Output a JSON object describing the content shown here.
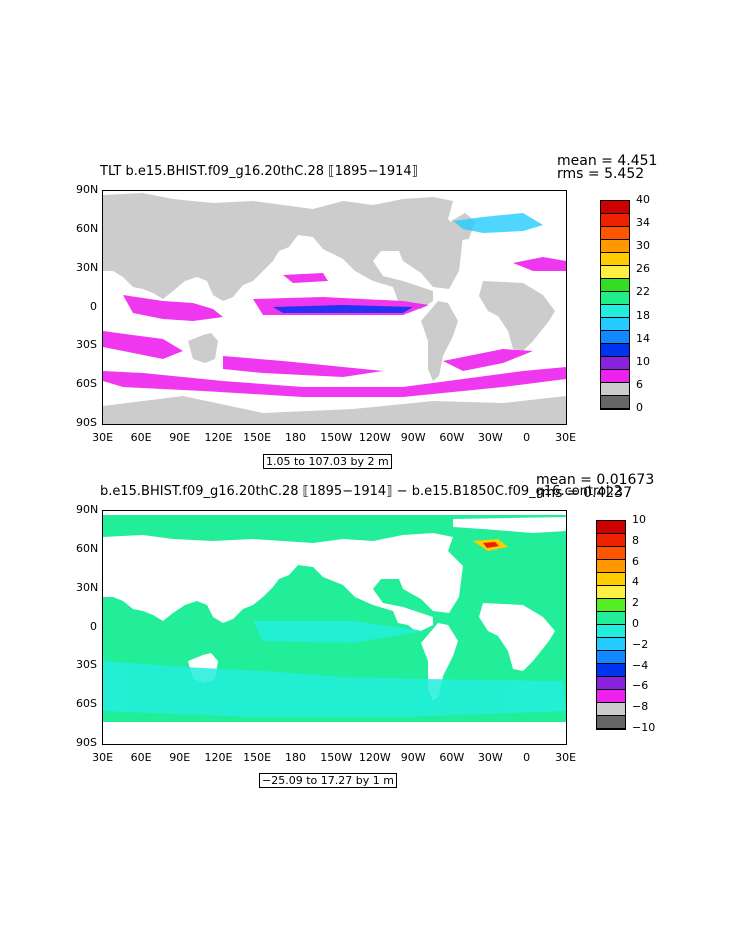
{
  "panels": [
    {
      "title_left": "TLT  b.e15.BHIST.f09_g16.20thC.28  ⟦1895−1914⟧",
      "mean_text": "mean = 4.451",
      "rms_text": "rms = 5.452",
      "range_text": "1.05 to 107.03 by 2 m",
      "colorbar": {
        "colors": [
          "#cc0000",
          "#ee2200",
          "#ff5500",
          "#ff9900",
          "#ffcc00",
          "#ffee44",
          "#33dd22",
          "#22ee88",
          "#22eedd",
          "#22ccff",
          "#1188ff",
          "#0033ee",
          "#8822dd",
          "#ee22ee",
          "#cccccc",
          "#666666"
        ],
        "labels": [
          "40",
          "34",
          "30",
          "26",
          "22",
          "18",
          "14",
          "10",
          "6",
          "0"
        ]
      }
    },
    {
      "title_left": "b.e15.BHIST.f09_g16.20thC.28  ⟦1895−1914⟧  −  b.e15.B1850C.f09_g16.control.2",
      "mean_text": "mean = 0.01673",
      "rms_text": "rms = 0.4237",
      "range_text": "−25.09 to 17.27 by 1 m",
      "colorbar": {
        "colors": [
          "#cc0000",
          "#ee2200",
          "#ff5500",
          "#ff9900",
          "#ffcc00",
          "#ffee44",
          "#55ee22",
          "#22ee99",
          "#22eedd",
          "#22ccff",
          "#1188ff",
          "#0033ee",
          "#8822dd",
          "#ee22ee",
          "#cccccc",
          "#666666"
        ],
        "labels": [
          "10",
          "8",
          "6",
          "4",
          "2",
          "0",
          "−2",
          "−4",
          "−6",
          "−8",
          "−10"
        ]
      }
    }
  ],
  "lat_labels": [
    "90N",
    "60N",
    "30N",
    "0",
    "30S",
    "60S",
    "90S"
  ],
  "lon_labels": [
    "30E",
    "60E",
    "90E",
    "120E",
    "150E",
    "180",
    "150W",
    "120W",
    "90W",
    "60W",
    "30W",
    "0",
    "30E"
  ],
  "colors": {
    "land": "#cccccc",
    "ocean_warm": "#ee22ee",
    "ocean_base": "#22ee99",
    "ocean_light": "#22eedd"
  }
}
